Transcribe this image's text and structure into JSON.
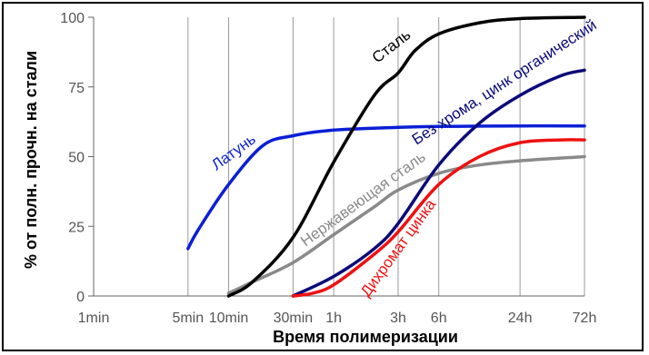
{
  "chart_data": {
    "type": "line",
    "xlabel": "Время полимеризации",
    "ylabel": "% от полн. прочн. на стали",
    "x_scale": "log",
    "x_ticks": [
      {
        "label": "1min",
        "hours": 0.01667
      },
      {
        "label": "5min",
        "hours": 0.08333
      },
      {
        "label": "10min",
        "hours": 0.16667
      },
      {
        "label": "30min",
        "hours": 0.5
      },
      {
        "label": "1h",
        "hours": 1
      },
      {
        "label": "3h",
        "hours": 3
      },
      {
        "label": "6h",
        "hours": 6
      },
      {
        "label": "24h",
        "hours": 24
      },
      {
        "label": "72h",
        "hours": 72
      }
    ],
    "y_ticks": [
      0,
      25,
      50,
      75,
      100
    ],
    "ylim": [
      0,
      100
    ],
    "grid": "vertical",
    "series": [
      {
        "name": "Сталь",
        "color": "#000000",
        "points": [
          [
            0.1667,
            0
          ],
          [
            0.25,
            5
          ],
          [
            0.5,
            21
          ],
          [
            1,
            48
          ],
          [
            2,
            72
          ],
          [
            3,
            80
          ],
          [
            4,
            88
          ],
          [
            6,
            94
          ],
          [
            12,
            98
          ],
          [
            24,
            99.5
          ],
          [
            72,
            100
          ]
        ]
      },
      {
        "name": "Латунь",
        "color": "#0a1fd6",
        "points": [
          [
            0.0833,
            17
          ],
          [
            0.1,
            24
          ],
          [
            0.1667,
            40
          ],
          [
            0.3,
            54
          ],
          [
            0.5,
            57.5
          ],
          [
            1,
            59.5
          ],
          [
            3,
            60.5
          ],
          [
            6,
            60.8
          ],
          [
            24,
            61
          ],
          [
            72,
            61
          ]
        ]
      },
      {
        "name": "Без хрома, цинк органический",
        "color": "#0a0a7a",
        "points": [
          [
            0.5,
            0
          ],
          [
            1,
            7
          ],
          [
            2,
            17
          ],
          [
            3,
            26
          ],
          [
            6,
            47
          ],
          [
            12,
            62
          ],
          [
            24,
            72
          ],
          [
            48,
            79
          ],
          [
            72,
            81
          ]
        ]
      },
      {
        "name": "Нержавеющая сталь",
        "color": "#8a8a8a",
        "points": [
          [
            0.1667,
            1
          ],
          [
            0.25,
            5
          ],
          [
            0.5,
            12
          ],
          [
            1,
            22
          ],
          [
            2,
            32
          ],
          [
            3,
            38
          ],
          [
            6,
            44
          ],
          [
            12,
            47
          ],
          [
            24,
            48.5
          ],
          [
            72,
            50
          ]
        ]
      },
      {
        "name": "Дихромат цинка",
        "color": "#ee1111",
        "points": [
          [
            0.5,
            0
          ],
          [
            0.7,
            1
          ],
          [
            1,
            4
          ],
          [
            2,
            15
          ],
          [
            3,
            23
          ],
          [
            6,
            40
          ],
          [
            12,
            50
          ],
          [
            24,
            55
          ],
          [
            48,
            56
          ],
          [
            72,
            56
          ]
        ]
      }
    ]
  }
}
